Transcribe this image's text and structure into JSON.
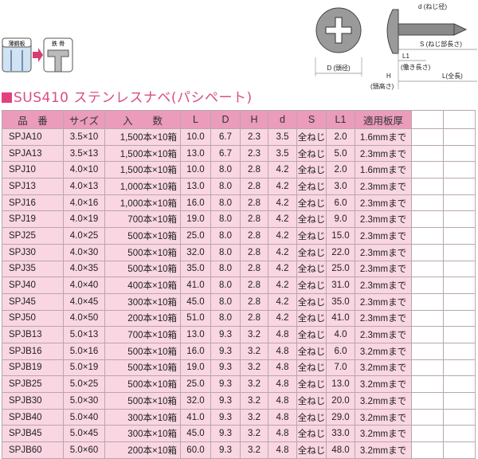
{
  "materials": {
    "from": "薄鋼板",
    "to": "鉄 骨"
  },
  "diagram": {
    "d_label": "d",
    "d_note": "(ねじ径)",
    "s_label": "S",
    "s_note": "(ねじ部長さ)",
    "l1_label": "L1",
    "l1_note": "(働き長さ)",
    "l_label": "L",
    "l_note": "(全長)",
    "h_label": "H",
    "h_note": "(頭高さ)",
    "D_label": "D",
    "D_note": "(頭径)"
  },
  "title": "SUS410 ステンレスナベ(パシペート)",
  "table": {
    "headers": [
      "品　番",
      "サイズ",
      "入　　数",
      "L",
      "D",
      "H",
      "d",
      "S",
      "L1",
      "適用板厚",
      "",
      ""
    ],
    "rows": [
      [
        "SPJA10",
        "3.5×10",
        "1,500本×10箱",
        "10.0",
        "6.7",
        "2.3",
        "3.5",
        "全ねじ",
        "2.0",
        "1.6mmまで"
      ],
      [
        "SPJA13",
        "3.5×13",
        "1,500本×10箱",
        "13.0",
        "6.7",
        "2.3",
        "3.5",
        "全ねじ",
        "5.0",
        "2.3mmまで"
      ],
      [
        "SPJ10",
        "4.0×10",
        "1,500本×10箱",
        "10.0",
        "8.0",
        "2.8",
        "4.2",
        "全ねじ",
        "2.0",
        "1.6mmまで"
      ],
      [
        "SPJ13",
        "4.0×13",
        "1,000本×10箱",
        "13.0",
        "8.0",
        "2.8",
        "4.2",
        "全ねじ",
        "3.0",
        "2.3mmまで"
      ],
      [
        "SPJ16",
        "4.0×16",
        "1,000本×10箱",
        "16.0",
        "8.0",
        "2.8",
        "4.2",
        "全ねじ",
        "6.0",
        "2.3mmまで"
      ],
      [
        "SPJ19",
        "4.0×19",
        "700本×10箱",
        "19.0",
        "8.0",
        "2.8",
        "4.2",
        "全ねじ",
        "9.0",
        "2.3mmまで"
      ],
      [
        "SPJ25",
        "4.0×25",
        "500本×10箱",
        "25.0",
        "8.0",
        "2.8",
        "4.2",
        "全ねじ",
        "15.0",
        "2.3mmまで"
      ],
      [
        "SPJ30",
        "4.0×30",
        "500本×10箱",
        "32.0",
        "8.0",
        "2.8",
        "4.2",
        "全ねじ",
        "22.0",
        "2.3mmまで"
      ],
      [
        "SPJ35",
        "4.0×35",
        "500本×10箱",
        "35.0",
        "8.0",
        "2.8",
        "4.2",
        "全ねじ",
        "25.0",
        "2.3mmまで"
      ],
      [
        "SPJ40",
        "4.0×40",
        "400本×10箱",
        "41.0",
        "8.0",
        "2.8",
        "4.2",
        "全ねじ",
        "31.0",
        "2.3mmまで"
      ],
      [
        "SPJ45",
        "4.0×45",
        "300本×10箱",
        "45.0",
        "8.0",
        "2.8",
        "4.2",
        "全ねじ",
        "35.0",
        "2.3mmまで"
      ],
      [
        "SPJ50",
        "4.0×50",
        "200本×10箱",
        "51.0",
        "8.0",
        "2.8",
        "4.2",
        "全ねじ",
        "41.0",
        "2.3mmまで"
      ],
      [
        "SPJB13",
        "5.0×13",
        "700本×10箱",
        "13.0",
        "9.3",
        "3.2",
        "4.8",
        "全ねじ",
        "4.0",
        "2.3mmまで"
      ],
      [
        "SPJB16",
        "5.0×16",
        "500本×10箱",
        "16.0",
        "9.3",
        "3.2",
        "4.8",
        "全ねじ",
        "6.0",
        "3.2mmまで"
      ],
      [
        "SPJB19",
        "5.0×19",
        "500本×10箱",
        "19.0",
        "9.3",
        "3.2",
        "4.8",
        "全ねじ",
        "7.0",
        "3.2mmまで"
      ],
      [
        "SPJB25",
        "5.0×25",
        "500本×10箱",
        "25.0",
        "9.3",
        "3.2",
        "4.8",
        "全ねじ",
        "13.0",
        "3.2mmまで"
      ],
      [
        "SPJB30",
        "5.0×30",
        "500本×10箱",
        "32.0",
        "9.3",
        "3.2",
        "4.8",
        "全ねじ",
        "20.0",
        "3.2mmまで"
      ],
      [
        "SPJB40",
        "5.0×40",
        "300本×10箱",
        "41.0",
        "9.3",
        "3.2",
        "4.8",
        "全ねじ",
        "29.0",
        "3.2mmまで"
      ],
      [
        "SPJB45",
        "5.0×45",
        "300本×10箱",
        "45.0",
        "9.3",
        "3.2",
        "4.8",
        "全ねじ",
        "33.0",
        "3.2mmまで"
      ],
      [
        "SPJB60",
        "5.0×60",
        "200本×10箱",
        "60.0",
        "9.3",
        "3.2",
        "4.8",
        "全ねじ",
        "48.0",
        "3.2mmまで"
      ]
    ]
  },
  "colors": {
    "accent": "#e2407f",
    "header_bg": "#ea9cba",
    "row_bg": "#f9d6e2"
  }
}
